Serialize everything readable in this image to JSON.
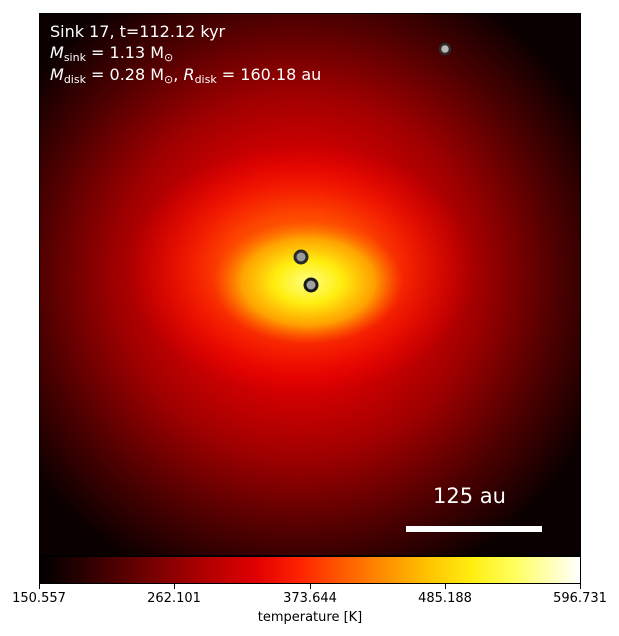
{
  "annotation": {
    "line1": "Sink 17, t=112.12 kyr",
    "line2_symbol": "M",
    "line2_sub": "sink",
    "line2_value": " = 1.13 M",
    "line2_unit_sub": "⊙",
    "line3_symbol": "M",
    "line3_sub": "disk",
    "line3_value": " = 0.28 M",
    "line3_unit_sub": "⊙",
    "line3_sep": ", ",
    "line3_r_symbol": "R",
    "line3_r_sub": "disk",
    "line3_r_value": " = 160.18 au"
  },
  "scale_bar": {
    "label": "125 au"
  },
  "colorbar": {
    "ticks": [
      "150.557",
      "262.101",
      "373.644",
      "485.188",
      "596.731"
    ],
    "label": "temperature [K]",
    "min": 150.557,
    "max": 596.731,
    "colormap": "hot"
  },
  "sinks": [
    {
      "name": "sink-upper-right",
      "style": "grey"
    },
    {
      "name": "sink-center-upper",
      "style": "dark"
    },
    {
      "name": "sink-center-lower",
      "style": "dark"
    }
  ]
}
